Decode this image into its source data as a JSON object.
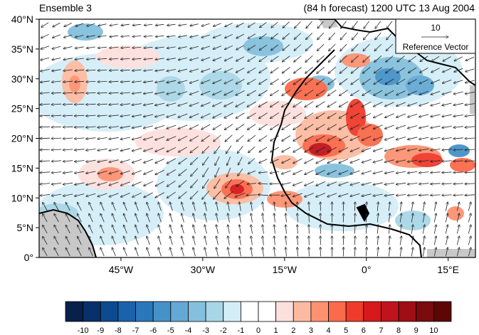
{
  "header": {
    "left_title": "Ensemble 3",
    "right_title": "(84 h forecast) 1200 UTC 13 Aug 2004"
  },
  "map": {
    "projection": "cylindrical-equidistant",
    "lon_range": [
      -60,
      20
    ],
    "lat_range": [
      0,
      40
    ],
    "lat_ticks": [
      {
        "value": 40,
        "label": "40°N"
      },
      {
        "value": 35,
        "label": "35°N"
      },
      {
        "value": 30,
        "label": "30°N"
      },
      {
        "value": 25,
        "label": "25°N"
      },
      {
        "value": 20,
        "label": "20°N"
      },
      {
        "value": 15,
        "label": "15°N"
      },
      {
        "value": 10,
        "label": "10°N"
      },
      {
        "value": 5,
        "label": "5°N"
      },
      {
        "value": 0,
        "label": "0°"
      }
    ],
    "lon_ticks": [
      {
        "value": -45,
        "label": "45°W"
      },
      {
        "value": -30,
        "label": "30°W"
      },
      {
        "value": -15,
        "label": "15°W"
      },
      {
        "value": 0,
        "label": "0°"
      },
      {
        "value": 15,
        "label": "15°E"
      }
    ],
    "wind_vectors": "on",
    "shading": "anomaly"
  },
  "reference_vector": {
    "magnitude": "10",
    "label": "Reference Vector"
  },
  "colorbar": {
    "labels": [
      "-10",
      "-9",
      "-8",
      "-7",
      "-6",
      "-5",
      "-4",
      "-3",
      "-2",
      "-1",
      "0",
      "1",
      "2",
      "3",
      "4",
      "5",
      "6",
      "7",
      "8",
      "9",
      "10"
    ],
    "colors": [
      "#08214a",
      "#08306b",
      "#0d4a8f",
      "#1a62aa",
      "#2a78bb",
      "#4592c8",
      "#64a9d4",
      "#84c0dd",
      "#a8d6e6",
      "#d4eef7",
      "#ffffff",
      "#ffffff",
      "#fde0dd",
      "#fcbba1",
      "#fc9272",
      "#fb6a4a",
      "#ef3b2c",
      "#d7191c",
      "#c0141c",
      "#9e0e14",
      "#7a0b0e",
      "#5c0606"
    ]
  },
  "colors": {
    "land_gray": "#c8c8c8",
    "coast": "#000000",
    "arrow": "#222222"
  }
}
